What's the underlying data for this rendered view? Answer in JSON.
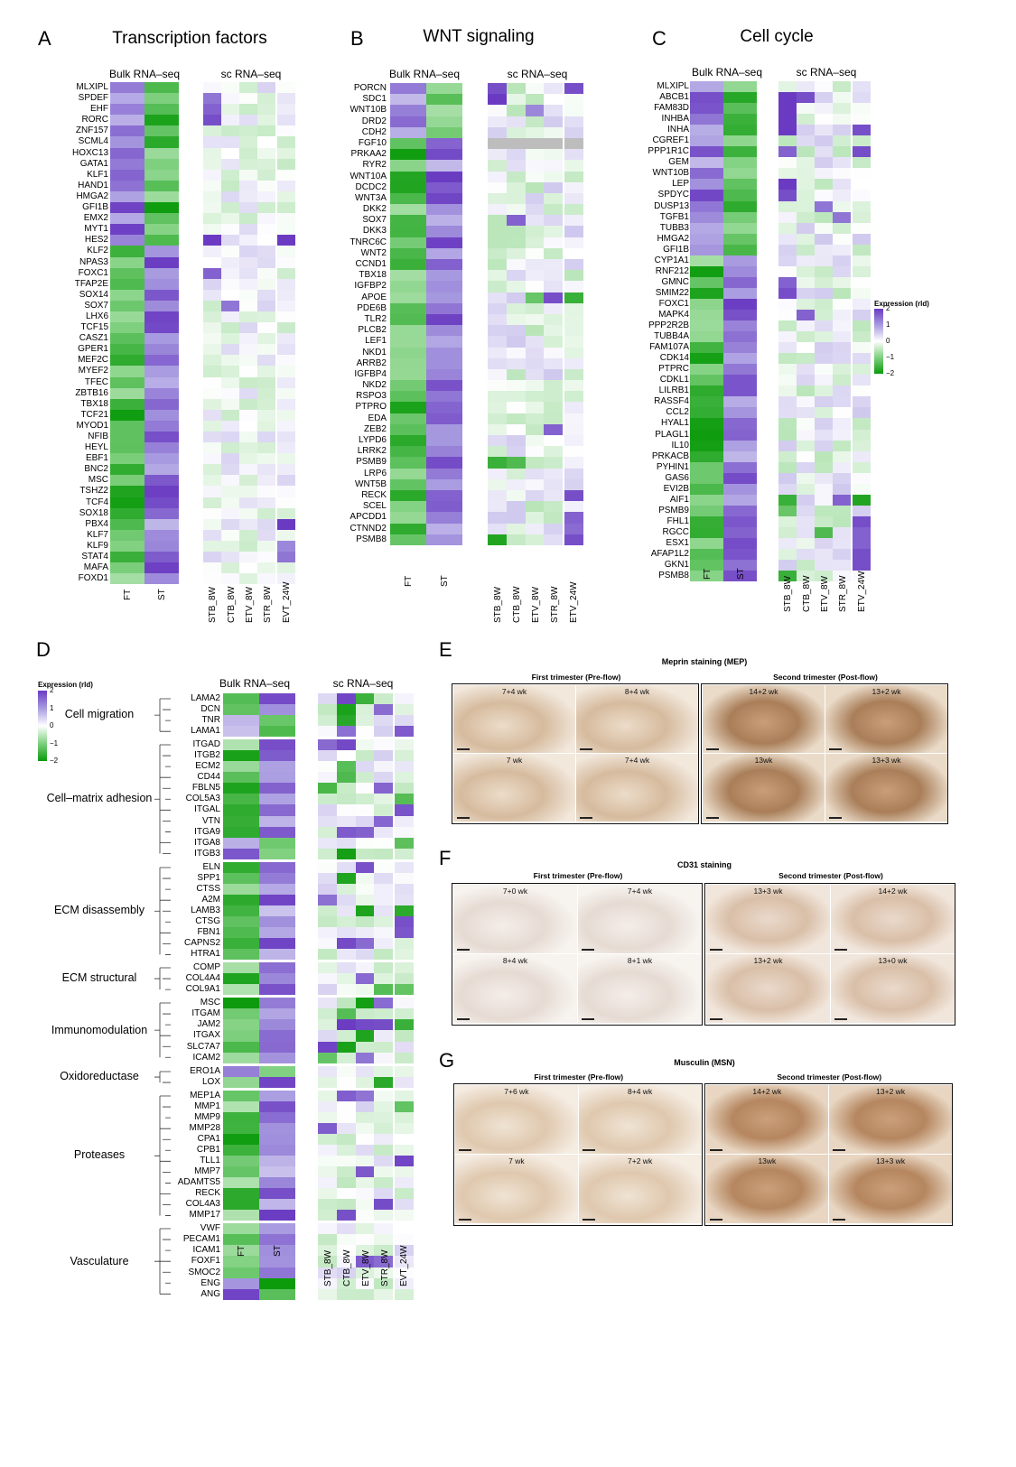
{
  "panels": {
    "A": {
      "label": "A",
      "title": "Transcription factors",
      "bulk": "Bulk RNA–seq",
      "sc": "sc RNA–seq",
      "genes": [
        "MLXIPL",
        "SPDEF",
        "EHF",
        "RORC",
        "ZNF157",
        "SCML4",
        "HOXC13",
        "GATA1",
        "KLF1",
        "HAND1",
        "HMGA2",
        "GFI1B",
        "EMX2",
        "MYT1",
        "HES2",
        "KLF2",
        "NPAS3",
        "FOXC1",
        "TFAP2E",
        "SOX14",
        "SOX7",
        "LHX6",
        "TCF15",
        "CASZ1",
        "GPER1",
        "MEF2C",
        "MYEF2",
        "TFEC",
        "ZBTB16",
        "TBX18",
        "TCF21",
        "MYOD1",
        "NFIB",
        "HEYL",
        "EBF1",
        "BNC2",
        "MSC",
        "TSHZ2",
        "TCF4",
        "SOX18",
        "PBX4",
        "KLF7",
        "KLF9",
        "STAT4",
        "MAFA",
        "FOXD1"
      ],
      "bulk_cols": [
        "FT",
        "ST"
      ],
      "sc_cols": [
        "STB_8W",
        "CTB_8W",
        "ETV_8W",
        "STR_8W",
        "EVT_24W"
      ]
    },
    "B": {
      "label": "B",
      "title": "WNT signaling",
      "bulk": "Bulk RNA–seq",
      "sc": "sc RNA–seq",
      "genes": [
        "PORCN",
        "SDC1",
        "WNT10B",
        "DRD2",
        "CDH2",
        "FGF10",
        "PRKAA2",
        "RYR2",
        "WNT10A",
        "DCDC2",
        "WNT3A",
        "DKK2",
        "SOX7",
        "DKK3",
        "TNRC6C",
        "WNT2",
        "CCND1",
        "TBX18",
        "IGFBP2",
        "APOE",
        "PDE6B",
        "TLR2",
        "PLCB2",
        "LEF1",
        "NKD1",
        "ARRB2",
        "IGFBP4",
        "NKD2",
        "RSPO3",
        "PTPRO",
        "EDA",
        "ZEB2",
        "LYPD6",
        "LRRK2",
        "PSMB9",
        "LRP6",
        "WNT5B",
        "RECK",
        "SCEL",
        "APCDD1",
        "CTNND2",
        "PSMB8"
      ],
      "bulk_cols": [
        "FT",
        "ST"
      ],
      "sc_cols": [
        "STB_8W",
        "CTB_8W",
        "ETV_8W",
        "STR_8W",
        "ETV_24W"
      ]
    },
    "C": {
      "label": "C",
      "title": "Cell cycle",
      "bulk": "Bulk RNA–seq",
      "sc": "sc RNA–seq",
      "genes": [
        "MLXIPL",
        "ABCB1",
        "FAM83D",
        "INHBA",
        "INHA",
        "CGREF1",
        "PPP1R1C",
        "GEM",
        "WNT10B",
        "LEP",
        "SPDYC",
        "DUSP13",
        "TGFB1",
        "TUBB3",
        "HMGA2",
        "GFI1B",
        "CYP1A1",
        "RNF212",
        "GMNC",
        "SMIM22",
        "FOXC1",
        "MAPK4",
        "PPP2R2B",
        "TUBB4A",
        "FAM107A",
        "CDK14",
        "PTPRC",
        "CDKL1",
        "LILRB1",
        "RASSF4",
        "CCL2",
        "HYAL1",
        "PLAGL1",
        "IL10",
        "PRKACB",
        "PYHIN1",
        "GAS6",
        "EVI2B",
        "AIF1",
        "PSMB9",
        "FHL1",
        "RGCC",
        "ESX1",
        "AFAP1L2",
        "GKN1",
        "PSMB8"
      ],
      "bulk_cols": [
        "FT",
        "ST"
      ],
      "sc_cols": [
        "STB_8W",
        "CTB_8W",
        "ETV_8W",
        "STR_8W",
        "ETV_24W"
      ],
      "legend": {
        "title": "Expression (rld)",
        "ticks": [
          "2",
          "1",
          "0",
          "−1",
          "−2"
        ]
      }
    },
    "D": {
      "label": "D",
      "bulk": "Bulk RNA–seq",
      "sc": "sc RNA–seq",
      "legend": {
        "title": "Expression (rld)",
        "ticks": [
          "2",
          "1",
          "0",
          "−1",
          "−2"
        ]
      },
      "groups": [
        {
          "name": "Cell migration",
          "genes": [
            "LAMA2",
            "DCN",
            "TNR",
            "LAMA1"
          ]
        },
        {
          "name": "Cell–matrix adhesion",
          "genes": [
            "ITGAD",
            "ITGB2",
            "ECM2",
            "CD44",
            "FBLN5",
            "COL5A3",
            "ITGAL",
            "VTN",
            "ITGA9",
            "ITGA8",
            "ITGB3"
          ]
        },
        {
          "name": "ECM disassembly",
          "genes": [
            "ELN",
            "SPP1",
            "CTSS",
            "A2M",
            "LAMB3",
            "CTSG",
            "FBN1",
            "CAPNS2",
            "HTRA1"
          ]
        },
        {
          "name": "ECM structural",
          "genes": [
            "COMP",
            "COL4A4",
            "COL9A1"
          ]
        },
        {
          "name": "Immunomodulation",
          "genes": [
            "MSC",
            "ITGAM",
            "JAM2",
            "ITGAX",
            "SLC7A7",
            "ICAM2"
          ]
        },
        {
          "name": "Oxidoreductase",
          "genes": [
            "ERO1A",
            "LOX"
          ]
        },
        {
          "name": "Proteases",
          "genes": [
            "MEP1A",
            "MMP1",
            "MMP9",
            "MMP28",
            "CPA1",
            "CPB1",
            "TLL1",
            "MMP7",
            "ADAMTS5",
            "RECK",
            "COL4A3",
            "MMP17"
          ]
        },
        {
          "name": "Vasculature",
          "genes": [
            "VWF",
            "PECAM1",
            "ICAM1",
            "FOXF1",
            "SMOC2",
            "ENG",
            "ANG"
          ]
        }
      ],
      "bulk_cols": [
        "FT",
        "ST"
      ],
      "sc_cols": [
        "STB_8W",
        "CTB_8W",
        "ETV_8W",
        "STR_8W",
        "EVT_24W"
      ]
    },
    "E": {
      "label": "E",
      "title": "Meprin staining (MEP)",
      "left": "First trimester (Pre-flow)",
      "right": "Second trimester (Post-flow)",
      "tiles": [
        "7+4 wk",
        "8+4 wk",
        "14+2 wk",
        "13+2 wk",
        "7 wk",
        "7+4 wk",
        "13wk",
        "13+3 wk"
      ]
    },
    "F": {
      "label": "F",
      "title": "CD31 staining",
      "left": "First trimester (Pre-flow)",
      "right": "Second trimester (Post-flow)",
      "tiles": [
        "7+0 wk",
        "7+4 wk",
        "13+3 wk",
        "14+2 wk",
        "8+4 wk",
        "8+1 wk",
        "13+2 wk",
        "13+0 wk"
      ]
    },
    "G": {
      "label": "G",
      "title": "Musculin (MSN)",
      "left": "First trimester (Pre-flow)",
      "right": "Second trimester (Post-flow)",
      "tiles": [
        "7+6 wk",
        "8+4 wk",
        "14+2 wk",
        "13+2 wk",
        "7 wk",
        "7+2 wk",
        "13wk",
        "13+3 wk"
      ]
    }
  },
  "colors": {
    "purple": "#6a3bc2",
    "green": "#0a9a0a",
    "white": "#ffffff",
    "na": "#bdbdbd"
  }
}
